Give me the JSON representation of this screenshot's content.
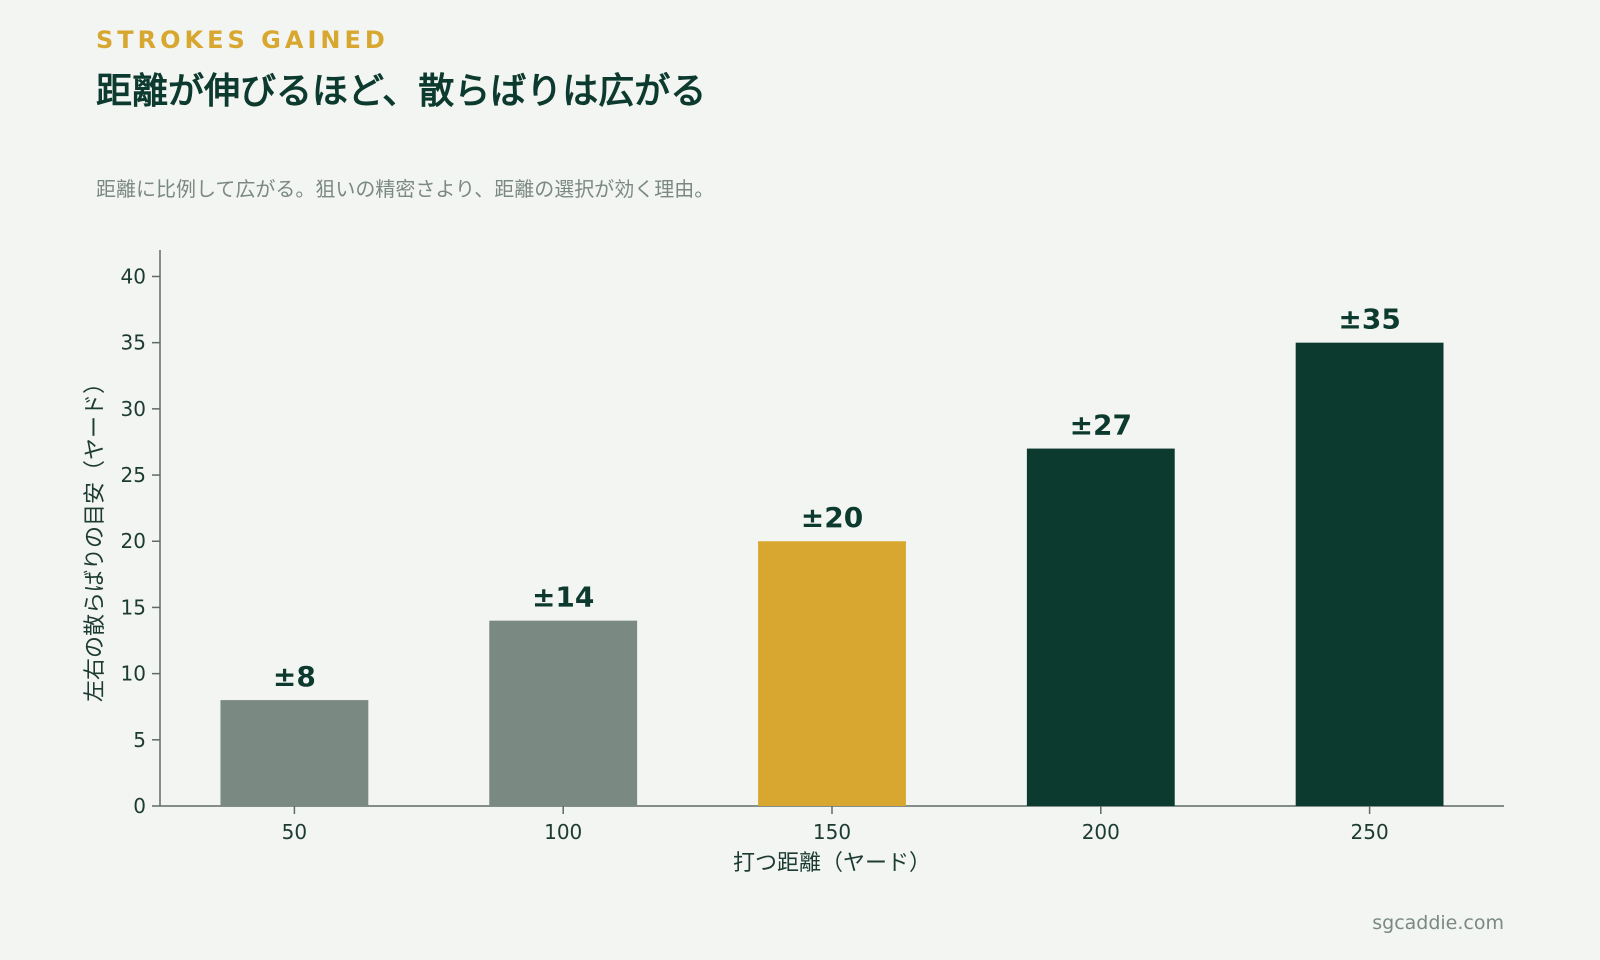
{
  "header": {
    "eyebrow": "STROKES GAINED",
    "title": "距離が伸びるほど、散らばりは広がる",
    "subtitle": "距離に比例して広がる。狙いの精密さより、距離の選択が効く理由。"
  },
  "footer": {
    "source": "sgcaddie.com"
  },
  "chart_data": {
    "type": "bar",
    "categories": [
      "50",
      "100",
      "150",
      "200",
      "250"
    ],
    "values": [
      8,
      14,
      20,
      27,
      35
    ],
    "data_labels": [
      "±8",
      "±14",
      "±20",
      "±27",
      "±35"
    ],
    "bar_colors": [
      "#7b8983",
      "#7b8983",
      "#d8a730",
      "#0d3a2e",
      "#0d3a2e"
    ],
    "xlabel": "打つ距離（ヤード）",
    "ylabel": "左右の散らばりの目安（ヤード）",
    "ylim": [
      0,
      42
    ],
    "yticks": [
      0,
      5,
      10,
      15,
      20,
      25,
      30,
      35,
      40
    ],
    "grid": false,
    "legend": "none"
  },
  "colors": {
    "background": "#f3f5f2",
    "accent": "#d8a730",
    "dark": "#0d3a2e",
    "muted": "#7b8983"
  }
}
